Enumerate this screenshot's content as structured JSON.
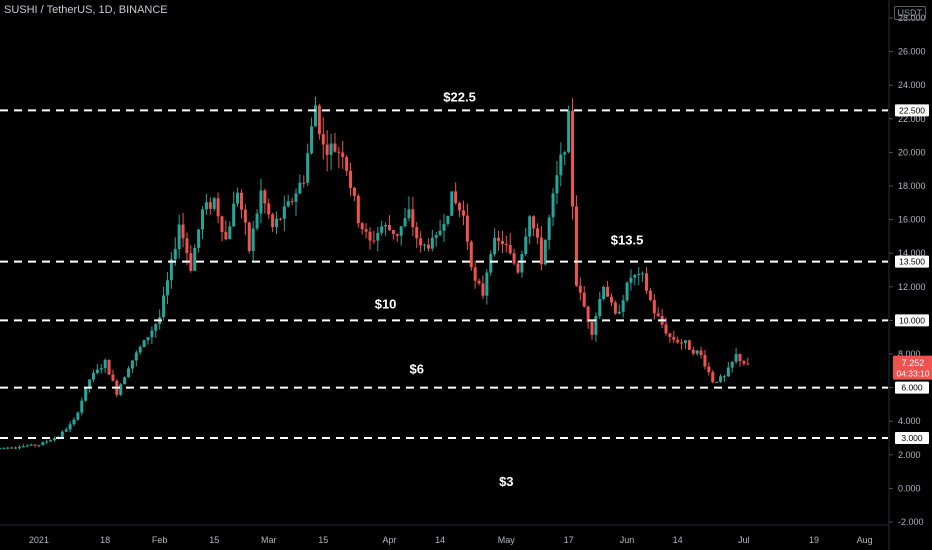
{
  "header": {
    "symbol_line": "SUSHI / TetherUS, 1D, BINANCE",
    "currency_badge": "USDT"
  },
  "colors": {
    "background": "#000000",
    "up": "#26a69a",
    "down": "#ef5350",
    "level_line": "#ffffff",
    "axis_text": "#b2b5be",
    "price_tag": "#ef5350"
  },
  "chart_data": {
    "type": "candlestick",
    "title": "SUSHI / TetherUS, 1D, BINANCE",
    "ylim": [
      -2,
      28
    ],
    "y_ticks": [
      "-2.000",
      "0.000",
      "2.000",
      "4.000",
      "6.000",
      "8.000",
      "10.000",
      "12.000",
      "14.000",
      "16.000",
      "18.000",
      "20.000",
      "22.000",
      "24.000",
      "26.000",
      "28.000"
    ],
    "y_tick_values": [
      -2,
      0,
      2,
      4,
      6,
      8,
      10,
      12,
      14,
      16,
      18,
      20,
      22,
      24,
      26,
      28
    ],
    "x_ticks": [
      {
        "label": "2021",
        "date": "2021-01-01"
      },
      {
        "label": "18",
        "date": "2021-01-18"
      },
      {
        "label": "Feb",
        "date": "2021-02-01"
      },
      {
        "label": "15",
        "date": "2021-02-15"
      },
      {
        "label": "Mar",
        "date": "2021-03-01"
      },
      {
        "label": "15",
        "date": "2021-03-15"
      },
      {
        "label": "Apr",
        "date": "2021-04-01"
      },
      {
        "label": "14",
        "date": "2021-04-14"
      },
      {
        "label": "May",
        "date": "2021-05-01"
      },
      {
        "label": "17",
        "date": "2021-05-17"
      },
      {
        "label": "Jun",
        "date": "2021-06-01"
      },
      {
        "label": "14",
        "date": "2021-06-14"
      },
      {
        "label": "Jul",
        "date": "2021-07-01"
      },
      {
        "label": "19",
        "date": "2021-07-19"
      },
      {
        "label": "Aug",
        "date": "2021-08-01"
      }
    ],
    "x_start_date": "2020-12-22",
    "x_end_date": "2021-08-07",
    "levels": [
      {
        "price": 22.5,
        "tag": "22.500",
        "annotation": "$22.5"
      },
      {
        "price": 13.5,
        "tag": "13.500",
        "annotation": "$13.5"
      },
      {
        "price": 10.0,
        "tag": "10.000",
        "annotation": "$10"
      },
      {
        "price": 6.0,
        "tag": "6.000",
        "annotation": "$6"
      },
      {
        "price": 3.0,
        "tag": "3.000",
        "annotation": "$3"
      }
    ],
    "current_price": {
      "value": 7.252,
      "label": "7.252",
      "countdown": "04:33:10"
    },
    "close_path": [
      [
        "2020-12-22",
        2.4
      ],
      [
        "2021-01-01",
        2.6
      ],
      [
        "2021-01-06",
        3.1
      ],
      [
        "2021-01-10",
        4.0
      ],
      [
        "2021-01-14",
        6.5
      ],
      [
        "2021-01-18",
        7.5
      ],
      [
        "2021-01-21",
        5.7
      ],
      [
        "2021-01-24",
        7.3
      ],
      [
        "2021-01-28",
        8.7
      ],
      [
        "2021-02-01",
        10.2
      ],
      [
        "2021-02-04",
        13.3
      ],
      [
        "2021-02-06",
        15.8
      ],
      [
        "2021-02-09",
        13.2
      ],
      [
        "2021-02-12",
        16.5
      ],
      [
        "2021-02-15",
        17.2
      ],
      [
        "2021-02-18",
        14.8
      ],
      [
        "2021-02-21",
        17.8
      ],
      [
        "2021-02-24",
        14.2
      ],
      [
        "2021-02-27",
        17.6
      ],
      [
        "2021-03-02",
        15.5
      ],
      [
        "2021-03-06",
        16.8
      ],
      [
        "2021-03-10",
        18.5
      ],
      [
        "2021-03-13",
        22.8
      ],
      [
        "2021-03-15",
        20.3
      ],
      [
        "2021-03-20",
        20.1
      ],
      [
        "2021-03-24",
        16.0
      ],
      [
        "2021-03-27",
        14.6
      ],
      [
        "2021-03-30",
        15.6
      ],
      [
        "2021-04-03",
        15.2
      ],
      [
        "2021-04-06",
        16.3
      ],
      [
        "2021-04-09",
        14.3
      ],
      [
        "2021-04-13",
        14.8
      ],
      [
        "2021-04-17",
        17.3
      ],
      [
        "2021-04-20",
        16.2
      ],
      [
        "2021-04-23",
        12.2
      ],
      [
        "2021-04-25",
        11.6
      ],
      [
        "2021-04-27",
        14.4
      ],
      [
        "2021-04-30",
        14.7
      ],
      [
        "2021-05-04",
        13.0
      ],
      [
        "2021-05-07",
        16.4
      ],
      [
        "2021-05-10",
        13.6
      ],
      [
        "2021-05-14",
        18.4
      ],
      [
        "2021-05-17",
        21.8
      ],
      [
        "2021-05-19",
        12.2
      ],
      [
        "2021-05-21",
        10.8
      ],
      [
        "2021-05-23",
        9.4
      ],
      [
        "2021-05-26",
        12.2
      ],
      [
        "2021-05-29",
        10.2
      ],
      [
        "2021-06-02",
        12.6
      ],
      [
        "2021-06-05",
        12.5
      ],
      [
        "2021-06-08",
        10.5
      ],
      [
        "2021-06-12",
        9.0
      ],
      [
        "2021-06-16",
        8.6
      ],
      [
        "2021-06-20",
        7.9
      ],
      [
        "2021-06-23",
        6.4
      ],
      [
        "2021-06-26",
        6.6
      ],
      [
        "2021-06-29",
        7.9
      ],
      [
        "2021-07-02",
        7.25
      ]
    ]
  }
}
